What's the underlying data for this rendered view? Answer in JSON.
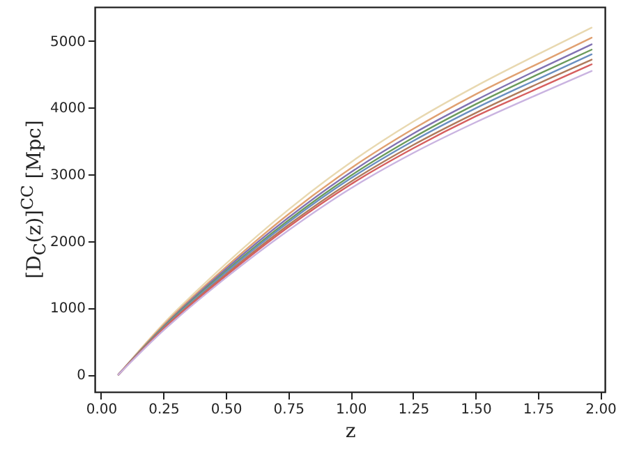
{
  "chart_data": {
    "type": "line",
    "xlabel": "z",
    "ylabel": "[D$_{C}$(z)]$^{CC}$ [Mpc]",
    "grid": false,
    "x": [
      0.07,
      0.25,
      0.5,
      0.75,
      1.0,
      1.25,
      1.5,
      1.75,
      1.965
    ],
    "xlim": [
      -0.025,
      2.018
    ],
    "xticks": [
      {
        "value": 0,
        "label": "0.00"
      },
      {
        "value": 0.25,
        "label": "0.25"
      },
      {
        "value": 0.5,
        "label": "0.50"
      },
      {
        "value": 0.75,
        "label": "0.75"
      },
      {
        "value": 1,
        "label": "1.00"
      },
      {
        "value": 1.25,
        "label": "1.25"
      },
      {
        "value": 1.5,
        "label": "1.50"
      },
      {
        "value": 1.75,
        "label": "1.75"
      },
      {
        "value": 2,
        "label": "2.00"
      }
    ],
    "ylim": [
      -260,
      5510
    ],
    "yticks": [
      0,
      1000,
      2000,
      3000,
      4000,
      5000
    ],
    "series": [
      {
        "color": "#e8d8b0",
        "values": [
          0,
          760,
          1660,
          2470,
          3180,
          3790,
          4320,
          4800,
          5200
        ]
      },
      {
        "color": "#e0a070",
        "values": [
          0,
          740,
          1610,
          2400,
          3090,
          3680,
          4200,
          4660,
          5050
        ]
      },
      {
        "color": "#8172b2",
        "values": [
          0,
          720,
          1580,
          2350,
          3030,
          3610,
          4110,
          4570,
          4950
        ]
      },
      {
        "color": "#6a9a5a",
        "values": [
          0,
          710,
          1550,
          2310,
          2980,
          3550,
          4050,
          4500,
          4870
        ]
      },
      {
        "color": "#6a8fc0",
        "values": [
          0,
          700,
          1530,
          2280,
          2940,
          3500,
          3990,
          4430,
          4800
        ]
      },
      {
        "color": "#b07a5a",
        "values": [
          0,
          690,
          1500,
          2240,
          2890,
          3440,
          3920,
          4360,
          4720
        ]
      },
      {
        "color": "#d65f5f",
        "values": [
          0,
          680,
          1480,
          2210,
          2850,
          3390,
          3870,
          4290,
          4650
        ]
      },
      {
        "color": "#c9b3e0",
        "values": [
          0,
          660,
          1450,
          2160,
          2790,
          3320,
          3780,
          4200,
          4550
        ]
      }
    ]
  }
}
